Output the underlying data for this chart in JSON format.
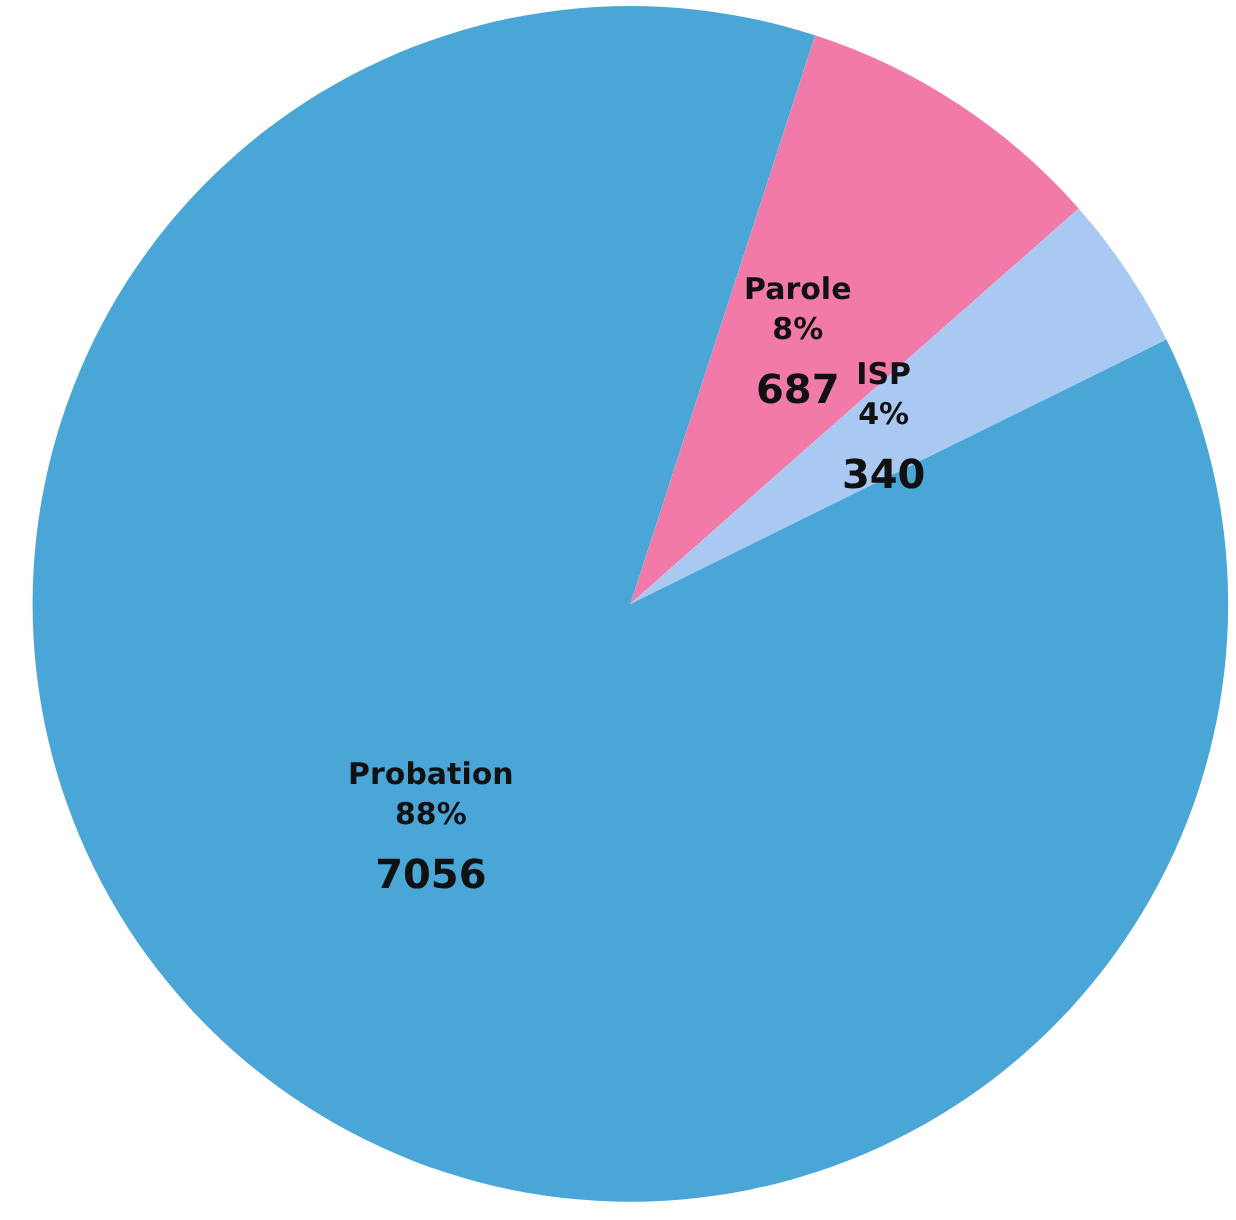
{
  "chart_data": {
    "type": "pie",
    "categories": [
      "Parole",
      "ISP",
      "Probation"
    ],
    "values": [
      687,
      340,
      7056
    ],
    "colors": [
      "#f27aa8",
      "#a9c9f3",
      "#4aa6d6"
    ],
    "annotations": [
      "8%",
      "4%",
      "88%"
    ],
    "data_labels": true
  }
}
